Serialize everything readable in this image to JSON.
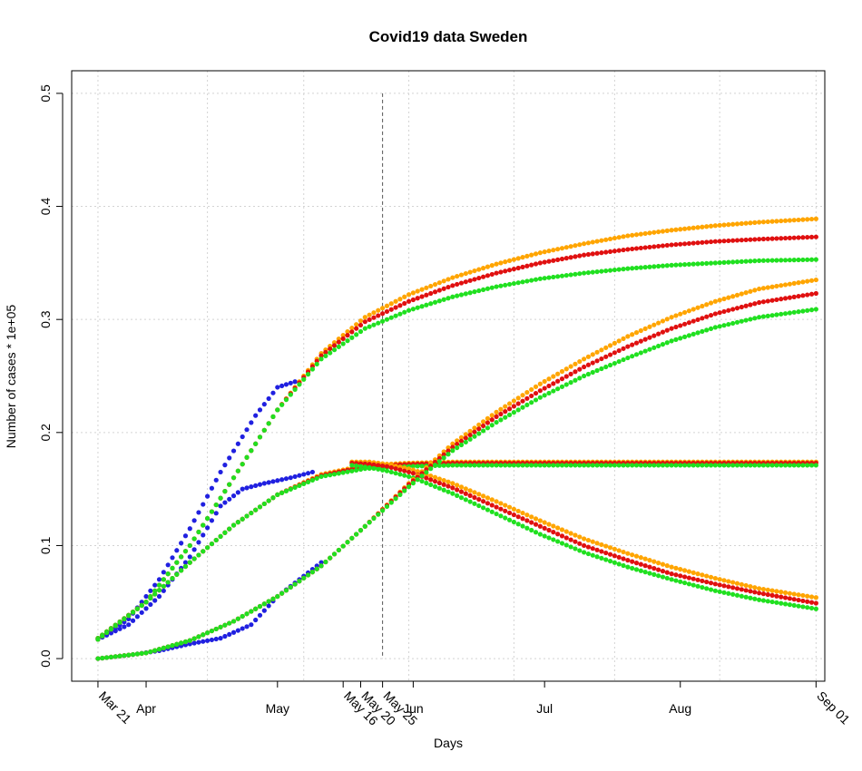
{
  "chart_data": {
    "type": "scatter",
    "title": "Covid19 data Sweden",
    "xlabel": "Days",
    "ylabel": "Number of cases * 1e+05",
    "x_start": "2020-03-21",
    "xlim": [
      "2020-03-15",
      "2020-09-03"
    ],
    "ylim": [
      -0.02,
      0.52
    ],
    "y_ticks": [
      0.0,
      0.1,
      0.2,
      0.3,
      0.4,
      0.5
    ],
    "y_tick_labels": [
      "0.0",
      "0.1",
      "0.2",
      "0.3",
      "0.4",
      "0.5"
    ],
    "x_ticks": [
      {
        "date": "2020-03-21",
        "label": "Mar 21",
        "rotated": true
      },
      {
        "date": "2020-04-01",
        "label": "Apr",
        "rotated": false
      },
      {
        "date": "2020-05-01",
        "label": "May",
        "rotated": false
      },
      {
        "date": "2020-05-16",
        "label": "May 16",
        "rotated": true
      },
      {
        "date": "2020-05-20",
        "label": "May 20",
        "rotated": true
      },
      {
        "date": "2020-05-25",
        "label": "May 25",
        "rotated": true
      },
      {
        "date": "2020-06-01",
        "label": "Jun",
        "rotated": false
      },
      {
        "date": "2020-07-01",
        "label": "Jul",
        "rotated": false
      },
      {
        "date": "2020-08-01",
        "label": "Aug",
        "rotated": false
      },
      {
        "date": "2020-09-01",
        "label": "Sep 01",
        "rotated": true
      }
    ],
    "grid_x": [
      "2020-03-21",
      "2020-04-15",
      "2020-05-07",
      "2020-05-31",
      "2020-06-24",
      "2020-07-17",
      "2020-08-10",
      "2020-09-01"
    ],
    "grid": true,
    "legend": "none",
    "vline": {
      "date": "2020-05-25",
      "style": "dashed",
      "ymax": 0.5
    },
    "series": [
      {
        "color": "#2020e0",
        "x": [
          "2020-03-21",
          "2020-03-28",
          "2020-04-04",
          "2020-04-11",
          "2020-04-18",
          "2020-04-23",
          "2020-04-28",
          "2020-05-04",
          "2020-05-09"
        ],
        "y": [
          0.017,
          0.03,
          0.055,
          0.09,
          0.135,
          0.15,
          0.155,
          0.16,
          0.165
        ]
      },
      {
        "color": "#2020e0",
        "x": [
          "2020-03-21",
          "2020-03-28",
          "2020-04-04",
          "2020-04-11",
          "2020-04-18",
          "2020-04-22",
          "2020-04-26",
          "2020-05-01",
          "2020-05-05"
        ],
        "y": [
          0.017,
          0.035,
          0.07,
          0.115,
          0.165,
          0.19,
          0.215,
          0.24,
          0.245
        ]
      },
      {
        "color": "#2020e0",
        "x": [
          "2020-03-21",
          "2020-03-28",
          "2020-04-04",
          "2020-04-11",
          "2020-04-18",
          "2020-04-25",
          "2020-05-01",
          "2020-05-06",
          "2020-05-11"
        ],
        "y": [
          0.0,
          0.003,
          0.007,
          0.013,
          0.018,
          0.03,
          0.055,
          0.07,
          0.085
        ]
      },
      {
        "color": "#ffa500",
        "x": [
          "2020-03-21",
          "2020-04-01",
          "2020-04-11",
          "2020-04-21",
          "2020-05-01",
          "2020-05-11",
          "2020-05-21",
          "2020-05-31",
          "2020-06-10",
          "2020-06-20",
          "2020-06-30",
          "2020-07-10",
          "2020-07-20",
          "2020-07-30",
          "2020-08-09",
          "2020-08-19",
          "2020-09-01"
        ],
        "y": [
          0.018,
          0.05,
          0.1,
          0.16,
          0.22,
          0.27,
          0.302,
          0.322,
          0.337,
          0.349,
          0.359,
          0.367,
          0.374,
          0.379,
          0.383,
          0.386,
          0.389
        ]
      },
      {
        "color": "#e01010",
        "x": [
          "2020-03-21",
          "2020-04-01",
          "2020-04-11",
          "2020-04-21",
          "2020-05-01",
          "2020-05-11",
          "2020-05-21",
          "2020-05-31",
          "2020-06-10",
          "2020-06-20",
          "2020-06-30",
          "2020-07-10",
          "2020-07-20",
          "2020-07-30",
          "2020-08-09",
          "2020-08-19",
          "2020-09-01"
        ],
        "y": [
          0.018,
          0.05,
          0.1,
          0.16,
          0.22,
          0.268,
          0.298,
          0.316,
          0.33,
          0.341,
          0.35,
          0.357,
          0.362,
          0.366,
          0.369,
          0.371,
          0.373
        ]
      },
      {
        "color": "#20e020",
        "x": [
          "2020-03-21",
          "2020-04-01",
          "2020-04-11",
          "2020-04-21",
          "2020-05-01",
          "2020-05-11",
          "2020-05-21",
          "2020-05-31",
          "2020-06-10",
          "2020-06-20",
          "2020-06-30",
          "2020-07-10",
          "2020-07-20",
          "2020-07-30",
          "2020-08-09",
          "2020-08-19",
          "2020-09-01"
        ],
        "y": [
          0.018,
          0.05,
          0.1,
          0.16,
          0.22,
          0.265,
          0.292,
          0.308,
          0.32,
          0.329,
          0.336,
          0.341,
          0.345,
          0.348,
          0.35,
          0.352,
          0.353
        ]
      },
      {
        "color": "#ffa500",
        "x": [
          "2020-03-21",
          "2020-04-01",
          "2020-04-11",
          "2020-04-21",
          "2020-05-01",
          "2020-05-11",
          "2020-05-21",
          "2020-05-31",
          "2020-06-10",
          "2020-06-20",
          "2020-06-30",
          "2020-07-10",
          "2020-07-20",
          "2020-07-30",
          "2020-08-09",
          "2020-08-19",
          "2020-09-01"
        ],
        "y": [
          0.017,
          0.05,
          0.085,
          0.118,
          0.145,
          0.163,
          0.171,
          0.173,
          0.174,
          0.174,
          0.174,
          0.174,
          0.174,
          0.174,
          0.174,
          0.174,
          0.174
        ]
      },
      {
        "color": "#e01010",
        "x": [
          "2020-03-21",
          "2020-04-01",
          "2020-04-11",
          "2020-04-21",
          "2020-05-01",
          "2020-05-11",
          "2020-05-21",
          "2020-05-31",
          "2020-06-10",
          "2020-06-20",
          "2020-06-30",
          "2020-07-10",
          "2020-07-20",
          "2020-07-30",
          "2020-08-09",
          "2020-08-19",
          "2020-09-01"
        ],
        "y": [
          0.017,
          0.05,
          0.085,
          0.118,
          0.145,
          0.162,
          0.17,
          0.172,
          0.173,
          0.173,
          0.173,
          0.173,
          0.173,
          0.173,
          0.173,
          0.173,
          0.173
        ]
      },
      {
        "color": "#20e020",
        "x": [
          "2020-03-21",
          "2020-04-01",
          "2020-04-11",
          "2020-04-21",
          "2020-05-01",
          "2020-05-11",
          "2020-05-21",
          "2020-05-31",
          "2020-06-10",
          "2020-06-20",
          "2020-06-30",
          "2020-07-10",
          "2020-07-20",
          "2020-07-30",
          "2020-08-09",
          "2020-08-19",
          "2020-09-01"
        ],
        "y": [
          0.017,
          0.05,
          0.085,
          0.118,
          0.145,
          0.161,
          0.168,
          0.17,
          0.171,
          0.171,
          0.171,
          0.171,
          0.171,
          0.171,
          0.171,
          0.171,
          0.171
        ]
      },
      {
        "color": "#ffa500",
        "x": [
          "2020-05-18",
          "2020-05-22",
          "2020-05-26",
          "2020-06-01",
          "2020-06-10",
          "2020-06-20",
          "2020-06-30",
          "2020-07-10",
          "2020-07-20",
          "2020-07-30",
          "2020-08-09",
          "2020-08-19",
          "2020-09-01"
        ],
        "y": [
          0.174,
          0.174,
          0.172,
          0.167,
          0.155,
          0.139,
          0.122,
          0.106,
          0.093,
          0.081,
          0.071,
          0.062,
          0.054
        ]
      },
      {
        "color": "#e01010",
        "x": [
          "2020-05-18",
          "2020-05-22",
          "2020-05-26",
          "2020-06-01",
          "2020-06-10",
          "2020-06-20",
          "2020-06-30",
          "2020-07-10",
          "2020-07-20",
          "2020-07-30",
          "2020-08-09",
          "2020-08-19",
          "2020-09-01"
        ],
        "y": [
          0.173,
          0.172,
          0.17,
          0.164,
          0.151,
          0.134,
          0.117,
          0.1,
          0.087,
          0.075,
          0.066,
          0.058,
          0.049
        ]
      },
      {
        "color": "#20e020",
        "x": [
          "2020-05-18",
          "2020-05-22",
          "2020-05-26",
          "2020-06-01",
          "2020-06-10",
          "2020-06-20",
          "2020-06-30",
          "2020-07-10",
          "2020-07-20",
          "2020-07-30",
          "2020-08-09",
          "2020-08-19",
          "2020-09-01"
        ],
        "y": [
          0.171,
          0.169,
          0.166,
          0.16,
          0.146,
          0.128,
          0.11,
          0.094,
          0.081,
          0.07,
          0.06,
          0.052,
          0.044
        ]
      },
      {
        "color": "#ffa500",
        "x": [
          "2020-03-21",
          "2020-04-01",
          "2020-04-11",
          "2020-04-21",
          "2020-05-01",
          "2020-05-11",
          "2020-05-21",
          "2020-05-31",
          "2020-06-10",
          "2020-06-20",
          "2020-06-30",
          "2020-07-10",
          "2020-07-20",
          "2020-07-30",
          "2020-08-09",
          "2020-08-19",
          "2020-09-01"
        ],
        "y": [
          0.0,
          0.005,
          0.016,
          0.033,
          0.055,
          0.082,
          0.117,
          0.155,
          0.19,
          0.218,
          0.243,
          0.265,
          0.285,
          0.302,
          0.316,
          0.327,
          0.335
        ]
      },
      {
        "color": "#e01010",
        "x": [
          "2020-03-21",
          "2020-04-01",
          "2020-04-11",
          "2020-04-21",
          "2020-05-01",
          "2020-05-11",
          "2020-05-21",
          "2020-05-31",
          "2020-06-10",
          "2020-06-20",
          "2020-06-30",
          "2020-07-10",
          "2020-07-20",
          "2020-07-30",
          "2020-08-09",
          "2020-08-19",
          "2020-09-01"
        ],
        "y": [
          0.0,
          0.005,
          0.016,
          0.033,
          0.055,
          0.082,
          0.117,
          0.154,
          0.187,
          0.214,
          0.237,
          0.258,
          0.276,
          0.292,
          0.305,
          0.315,
          0.323
        ]
      },
      {
        "color": "#20e020",
        "x": [
          "2020-03-21",
          "2020-04-01",
          "2020-04-11",
          "2020-04-21",
          "2020-05-01",
          "2020-05-11",
          "2020-05-21",
          "2020-05-31",
          "2020-06-10",
          "2020-06-20",
          "2020-06-30",
          "2020-07-10",
          "2020-07-20",
          "2020-07-30",
          "2020-08-09",
          "2020-08-19",
          "2020-09-01"
        ],
        "y": [
          0.0,
          0.005,
          0.016,
          0.033,
          0.055,
          0.082,
          0.117,
          0.152,
          0.184,
          0.209,
          0.231,
          0.25,
          0.266,
          0.281,
          0.293,
          0.302,
          0.309
        ]
      }
    ]
  }
}
